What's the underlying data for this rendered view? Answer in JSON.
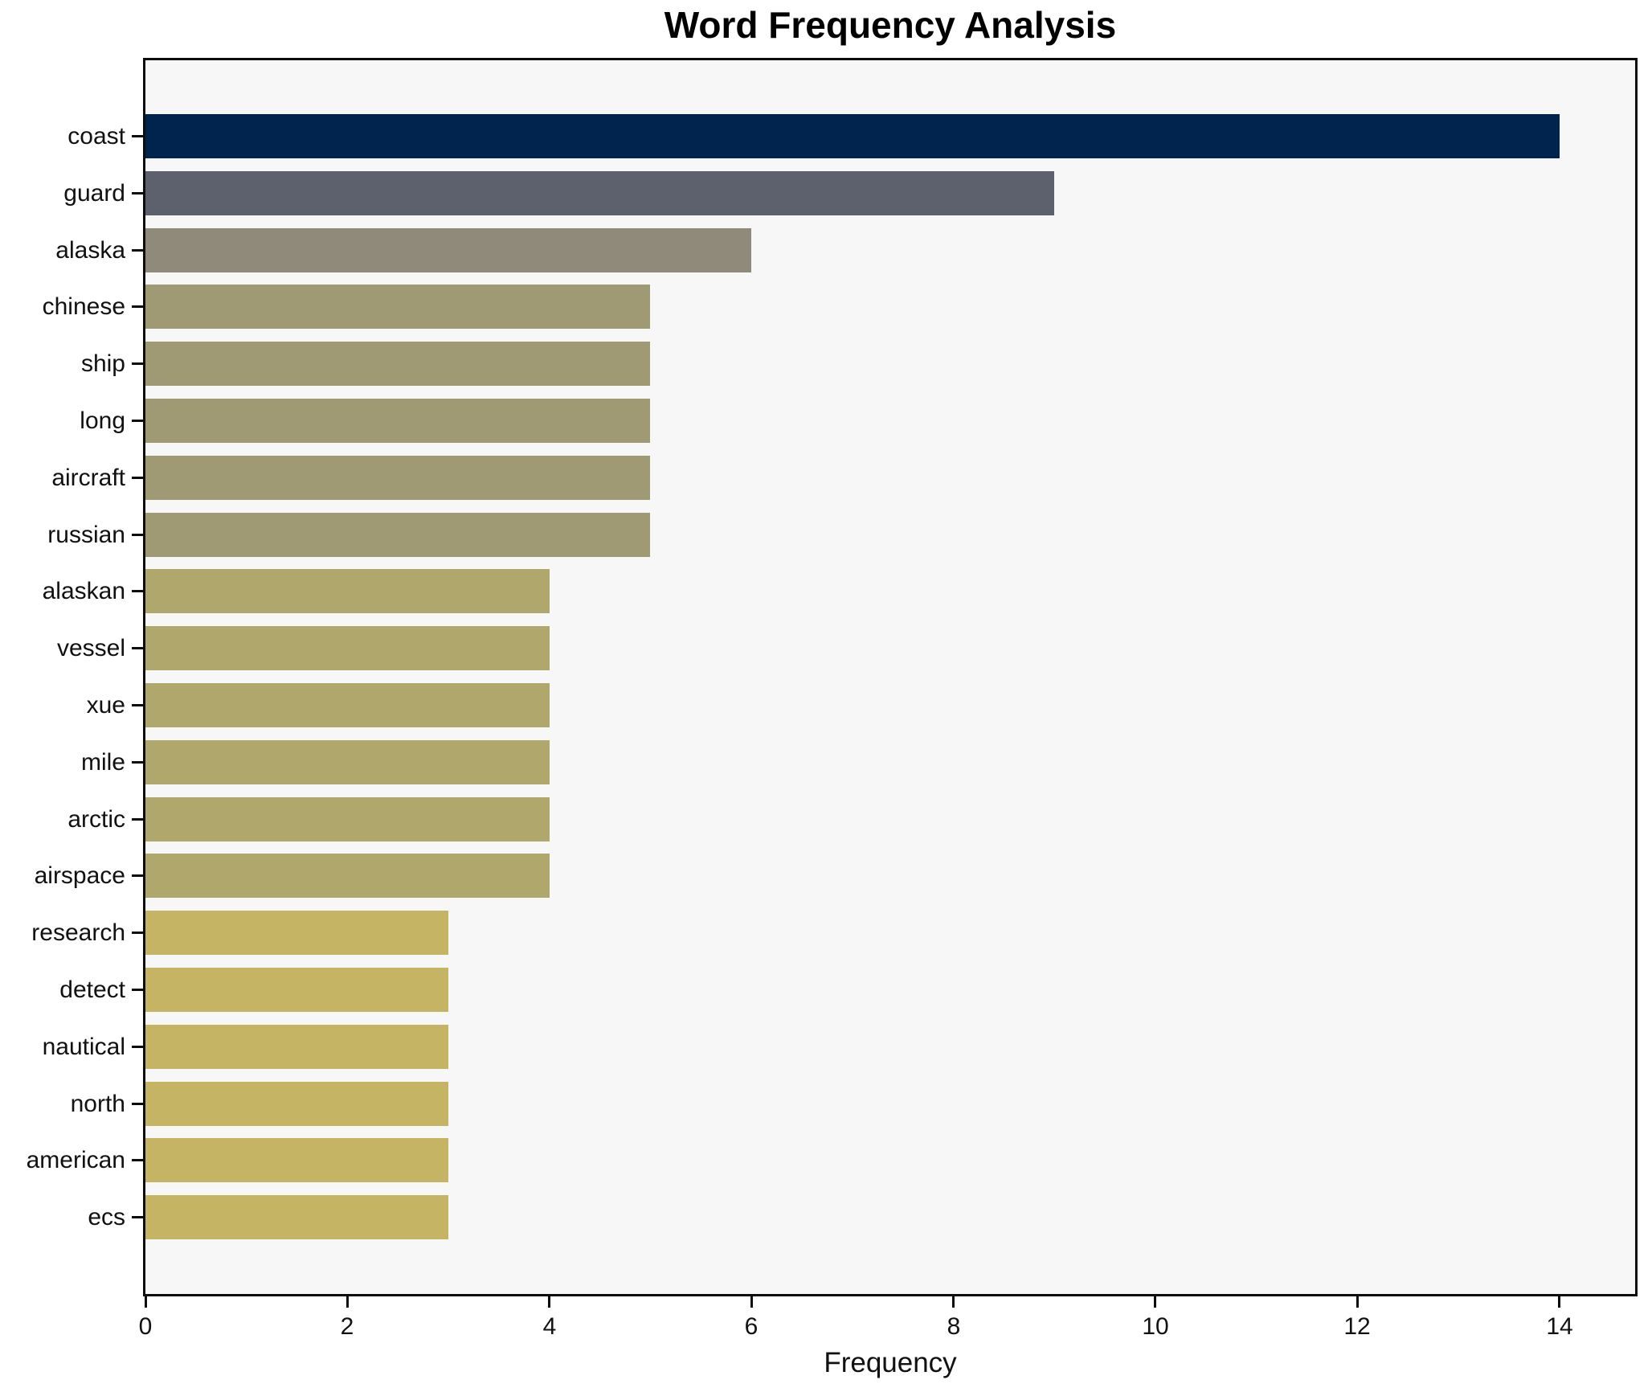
{
  "chart_data": {
    "type": "bar",
    "orientation": "horizontal",
    "title": "Word Frequency Analysis",
    "xlabel": "Frequency",
    "ylabel": "",
    "categories": [
      "coast",
      "guard",
      "alaska",
      "chinese",
      "ship",
      "long",
      "aircraft",
      "russian",
      "alaskan",
      "vessel",
      "xue",
      "mile",
      "arctic",
      "airspace",
      "research",
      "detect",
      "nautical",
      "north",
      "american",
      "ecs"
    ],
    "values": [
      14,
      9,
      6,
      5,
      5,
      5,
      5,
      5,
      4,
      4,
      4,
      4,
      4,
      4,
      3,
      3,
      3,
      3,
      3,
      3
    ],
    "bar_colors": [
      "#01244e",
      "#5c616d",
      "#8f8a79",
      "#a09a74",
      "#a09a74",
      "#a09a74",
      "#a09a74",
      "#a09a74",
      "#b0a76c",
      "#b0a76c",
      "#b0a76c",
      "#b0a76c",
      "#b0a76c",
      "#b0a76c",
      "#c5b464",
      "#c5b464",
      "#c5b464",
      "#c5b464",
      "#c5b464",
      "#c5b464"
    ],
    "xticks": [
      0,
      2,
      4,
      6,
      8,
      10,
      12,
      14
    ],
    "xlim": [
      0,
      14.75
    ],
    "grid": false,
    "legend": null,
    "plot_background": "#f7f7f8",
    "figure_background": "#ffffff",
    "spine_color": "#0d0d0d",
    "text_color": "#111111"
  }
}
